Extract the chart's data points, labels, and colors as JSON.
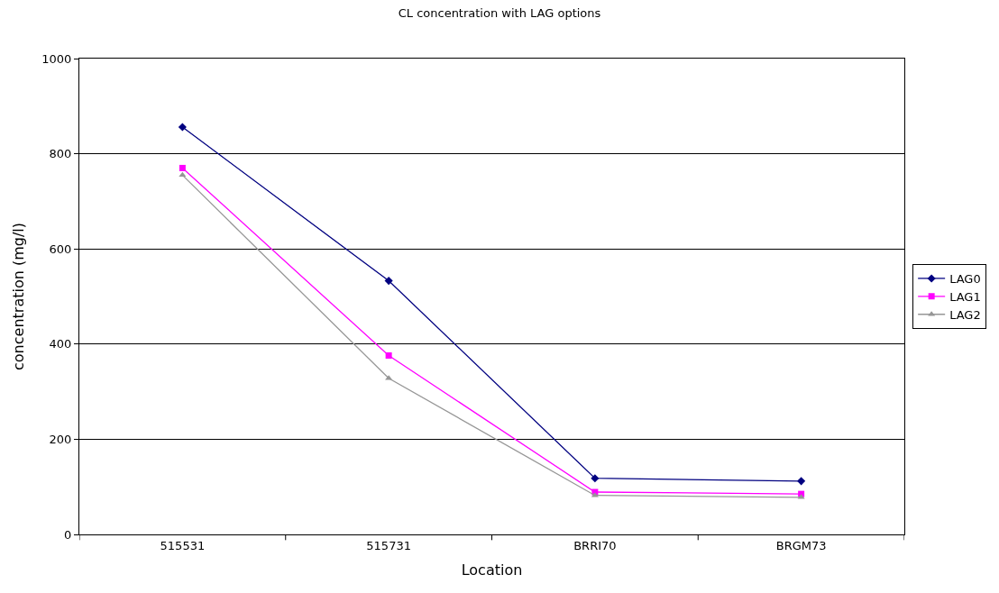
{
  "chart_data": {
    "type": "line",
    "title": "CL concentration with LAG options",
    "xlabel": "Location",
    "ylabel": "concentration (mg/l)",
    "categories": [
      "515531",
      "515731",
      "BRRI70",
      "BRGM73"
    ],
    "series": [
      {
        "name": "LAG0",
        "color": "#000080",
        "marker": "diamond",
        "values": [
          856,
          533,
          118,
          112
        ]
      },
      {
        "name": "LAG1",
        "color": "#ff00ff",
        "marker": "square",
        "values": [
          770,
          376,
          89,
          85
        ]
      },
      {
        "name": "LAG2",
        "color": "#969696",
        "marker": "triangle",
        "values": [
          755,
          328,
          82,
          78
        ]
      }
    ],
    "ylim": [
      0,
      1000
    ],
    "yticks": [
      0,
      200,
      400,
      600,
      800,
      1000
    ],
    "grid": "y",
    "legend": "right",
    "line_style": "solid"
  }
}
